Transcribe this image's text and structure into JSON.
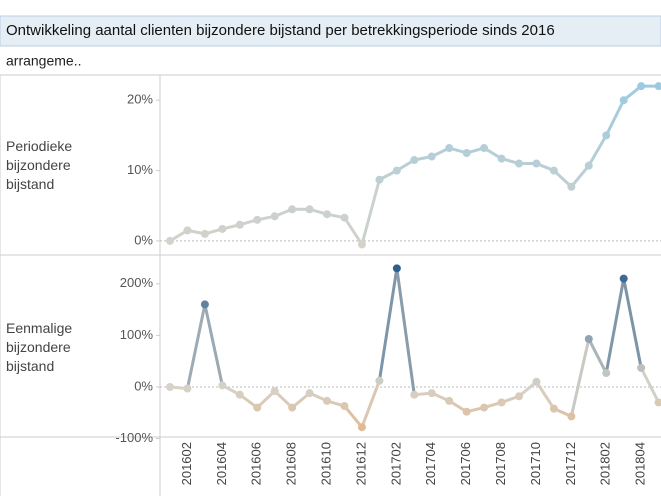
{
  "title": "Ontwikkeling aantal clienten bijzondere bijstand per betrekkingsperiode sinds 2016",
  "filter_label": "arrangeme..",
  "chart_data": {
    "type": "line",
    "categories": [
      null,
      "201602",
      null,
      "201604",
      null,
      "201606",
      null,
      "201608",
      null,
      "201610",
      null,
      "201612",
      null,
      "201702",
      null,
      "201704",
      null,
      "201706",
      null,
      "201708",
      null,
      "201710",
      null,
      "201712",
      null,
      "201802",
      null,
      "201804",
      null
    ],
    "panels": [
      {
        "label": "Periodieke bijzondere bijstand",
        "values": [
          0,
          1.5,
          1,
          1.7,
          2.3,
          3,
          3.5,
          4.5,
          4.5,
          3.8,
          3.3,
          -0.5,
          8.7,
          10,
          11.5,
          12,
          13.2,
          12.5,
          13.2,
          11.7,
          11,
          11,
          10,
          7.7,
          10.7,
          15,
          20,
          22,
          22
        ],
        "ylim": [
          -2,
          23.3
        ],
        "yticks": [
          {
            "value": 0,
            "label": "0%"
          },
          {
            "value": 10,
            "label": "10%"
          },
          {
            "value": 20,
            "label": "20%"
          }
        ],
        "colors": [
          "#d6d2c9",
          "#9ccbe1"
        ]
      },
      {
        "label": "Eenmalige bijzondere bijstand",
        "values": [
          0,
          -3,
          160,
          3,
          -15,
          -40,
          -8,
          -40,
          -12,
          -27,
          -37,
          -78,
          12,
          230,
          -15,
          -12,
          -27,
          -48,
          -40,
          -30,
          -18,
          10,
          -42,
          -57,
          93,
          27,
          210,
          37,
          -30
        ],
        "ylim": [
          -97,
          250
        ],
        "yticks": [
          {
            "value": -100,
            "label": "-100%"
          },
          {
            "value": 0,
            "label": "0%"
          },
          {
            "value": 100,
            "label": "100%"
          },
          {
            "value": 200,
            "label": "200%"
          }
        ],
        "colors": [
          "#f28e2b",
          "#d6d2c9",
          "#2f5f8c"
        ]
      }
    ]
  }
}
